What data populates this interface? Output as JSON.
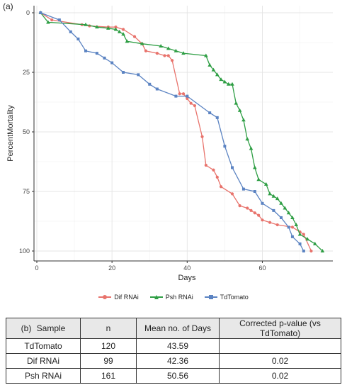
{
  "panel_labels": {
    "a": "(a)",
    "b": "(b)"
  },
  "chart_data": {
    "type": "line",
    "xlabel": "Days",
    "ylabel": "PercentMortality",
    "xlim": [
      0,
      78
    ],
    "ylim": [
      0,
      100
    ],
    "y_reversed": true,
    "xticks": [
      0,
      20,
      40,
      60
    ],
    "yticks": [
      0,
      25,
      50,
      75,
      100
    ],
    "grid": true,
    "legend_position": "bottom",
    "series": [
      {
        "name": "Dif RNAi",
        "color": "#e8736c",
        "marker": "circle",
        "points": [
          [
            1,
            0
          ],
          [
            4,
            3
          ],
          [
            12,
            5
          ],
          [
            14,
            5.5
          ],
          [
            19,
            6
          ],
          [
            21,
            6
          ],
          [
            23,
            7
          ],
          [
            26,
            10
          ],
          [
            28,
            13
          ],
          [
            29,
            16
          ],
          [
            32,
            17
          ],
          [
            34,
            18
          ],
          [
            35,
            18
          ],
          [
            36,
            20
          ],
          [
            38,
            34
          ],
          [
            39,
            34
          ],
          [
            40,
            36
          ],
          [
            41,
            38
          ],
          [
            42,
            39
          ],
          [
            44,
            52
          ],
          [
            45,
            64
          ],
          [
            47,
            66
          ],
          [
            48,
            69
          ],
          [
            49,
            73
          ],
          [
            52,
            76
          ],
          [
            54,
            81
          ],
          [
            56,
            82
          ],
          [
            57,
            83
          ],
          [
            58,
            84
          ],
          [
            59,
            85
          ],
          [
            60,
            87
          ],
          [
            62,
            88
          ],
          [
            64,
            89
          ],
          [
            68,
            90
          ],
          [
            70,
            92
          ],
          [
            71,
            93
          ],
          [
            73,
            100
          ]
        ]
      },
      {
        "name": "Psh RNAi",
        "color": "#2e9e44",
        "marker": "triangle",
        "points": [
          [
            1,
            0
          ],
          [
            3,
            4
          ],
          [
            13,
            5
          ],
          [
            16,
            6
          ],
          [
            19,
            6.5
          ],
          [
            21,
            7
          ],
          [
            22,
            8
          ],
          [
            23,
            9
          ],
          [
            24,
            12
          ],
          [
            28,
            13
          ],
          [
            33,
            14
          ],
          [
            35,
            15
          ],
          [
            37,
            16
          ],
          [
            39,
            17
          ],
          [
            45,
            18
          ],
          [
            46,
            22
          ],
          [
            47,
            24
          ],
          [
            48,
            26
          ],
          [
            49,
            28
          ],
          [
            50,
            29
          ],
          [
            51,
            30
          ],
          [
            52,
            30
          ],
          [
            53,
            38
          ],
          [
            54,
            41
          ],
          [
            55,
            45
          ],
          [
            56,
            53
          ],
          [
            57,
            57
          ],
          [
            58,
            65
          ],
          [
            59,
            70
          ],
          [
            61,
            72
          ],
          [
            62,
            76
          ],
          [
            63,
            77
          ],
          [
            64,
            78
          ],
          [
            65,
            80
          ],
          [
            66,
            82
          ],
          [
            67,
            84
          ],
          [
            68,
            86
          ],
          [
            69,
            89
          ],
          [
            70,
            93
          ],
          [
            72,
            95
          ],
          [
            74,
            97
          ],
          [
            76,
            100
          ]
        ]
      },
      {
        "name": "TdTomato",
        "color": "#5b83c2",
        "marker": "square",
        "points": [
          [
            1,
            0
          ],
          [
            6,
            3
          ],
          [
            9,
            8
          ],
          [
            11,
            11
          ],
          [
            13,
            16
          ],
          [
            16,
            17
          ],
          [
            18,
            19
          ],
          [
            20,
            21
          ],
          [
            23,
            25
          ],
          [
            27,
            26
          ],
          [
            30,
            30
          ],
          [
            32,
            32
          ],
          [
            37,
            35
          ],
          [
            40,
            35
          ],
          [
            46,
            42
          ],
          [
            48,
            44
          ],
          [
            50,
            56
          ],
          [
            52,
            65
          ],
          [
            55,
            74
          ],
          [
            58,
            75
          ],
          [
            60,
            80
          ],
          [
            63,
            83
          ],
          [
            65,
            86
          ],
          [
            67,
            90
          ],
          [
            68,
            94
          ],
          [
            70,
            97
          ],
          [
            71,
            100
          ]
        ]
      }
    ]
  },
  "table": {
    "headers": [
      "Sample",
      "n",
      "Mean no. of Days",
      "Corrected p-value (vs TdTomato)"
    ],
    "rows": [
      [
        "TdTomato",
        "120",
        "43.59",
        ""
      ],
      [
        "Dif RNAi",
        "99",
        "42.36",
        "0.02"
      ],
      [
        "Psh RNAi",
        "161",
        "50.56",
        "0.02"
      ]
    ]
  }
}
